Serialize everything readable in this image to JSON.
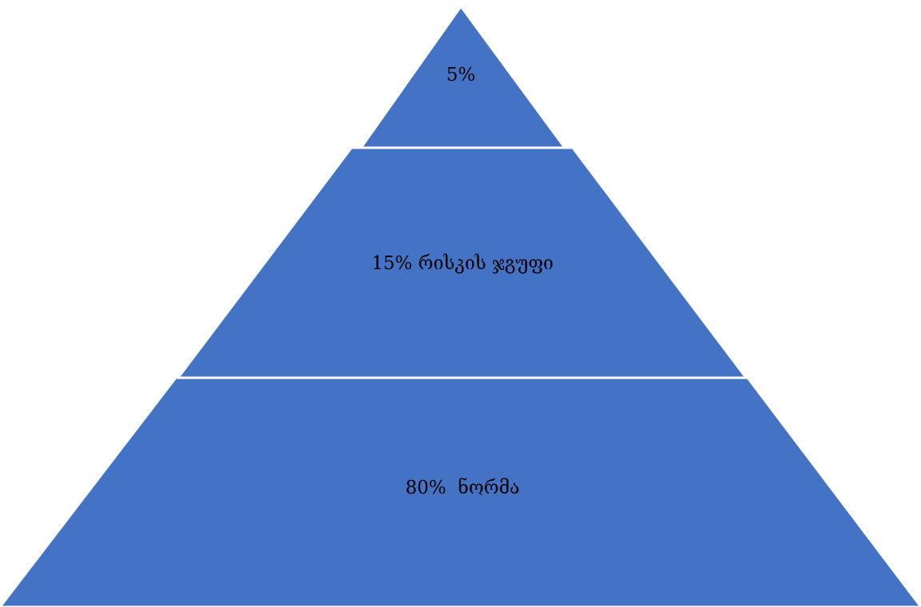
{
  "diagram": {
    "type": "pyramid",
    "fill_color": "#4472C4",
    "separator_color": "#FFFFFF",
    "text_color": "#000000",
    "tiers": [
      {
        "label": "5%"
      },
      {
        "label": "15% რისკის ჯგუფი"
      },
      {
        "label": "80%  ნორმა"
      }
    ]
  }
}
